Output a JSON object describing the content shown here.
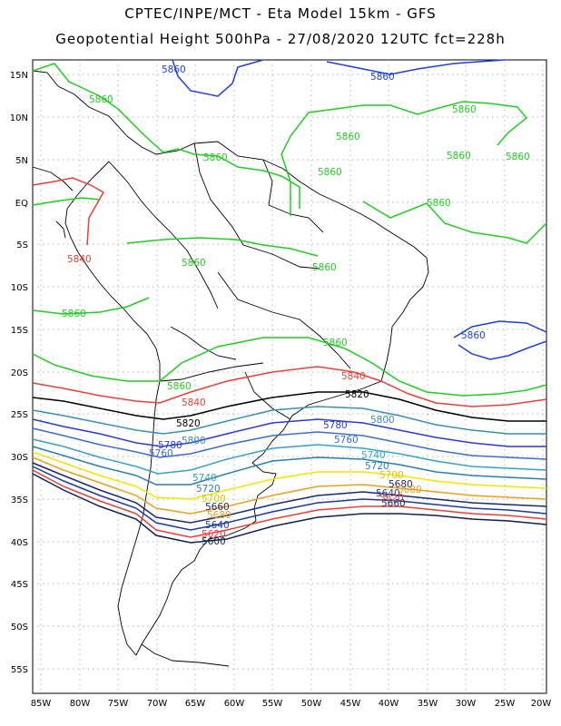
{
  "header": {
    "line1": "CPTEC/INPE/MCT -  Eta Model 15km - GFS",
    "line2": "Geopotential Height 500hPa - 27/08/2020 12UTC fct=228h"
  },
  "axes": {
    "lat_ticks": [
      "15N",
      "10N",
      "5N",
      "EQ",
      "5S",
      "10S",
      "15S",
      "20S",
      "25S",
      "30S",
      "35S",
      "40S",
      "45S",
      "50S",
      "55S"
    ],
    "lon_ticks": [
      "85W",
      "80W",
      "75W",
      "70W",
      "65W",
      "60W",
      "55W",
      "50W",
      "45W",
      "40W",
      "35W",
      "30W",
      "25W",
      "20W"
    ]
  },
  "contours": [
    {
      "level": "5860",
      "color": "#1f3fd6"
    },
    {
      "level": "5860",
      "color": "#22cc22"
    },
    {
      "level": "5840",
      "color": "#e8403a"
    },
    {
      "level": "5820",
      "color": "#000000"
    },
    {
      "level": "5800",
      "color": "#3a8fb0"
    },
    {
      "level": "5780",
      "color": "#2a3ad0"
    },
    {
      "level": "5760",
      "color": "#3a6ec8"
    },
    {
      "level": "5740",
      "color": "#3aa0c8"
    },
    {
      "level": "5720",
      "color": "#2a7fa8"
    },
    {
      "level": "5700",
      "color": "#f5e400"
    },
    {
      "level": "5680",
      "color": "#e8a020"
    },
    {
      "level": "5660",
      "color": "#1a2a6a"
    },
    {
      "level": "5640",
      "color": "#1a3aa0"
    },
    {
      "level": "5620",
      "color": "#e8403a"
    },
    {
      "level": "5600",
      "color": "#102050"
    }
  ],
  "labels": {
    "l5860a": "5860",
    "l5860b": "5860",
    "l5860c": "5860",
    "l5860d": "5860",
    "l5860e": "5860",
    "l5860f": "5860",
    "l5860g": "5860",
    "l5860h": "5860",
    "l5860i": "5860",
    "l5860j": "5860",
    "l5860k": "5860",
    "l5860l": "5860",
    "l5860m": "5860",
    "l5860n": "5860",
    "l5860o": "5860",
    "l5860p": "5860",
    "l5860q": "5860",
    "l5840a": "5840",
    "l5840b": "5840",
    "l5840c": "5840",
    "l5840d": "5840",
    "l5820a": "5820",
    "l5820b": "5820",
    "l5800a": "5800",
    "l5800b": "5800",
    "l5780a": "5780",
    "l5780b": "5780",
    "l5760a": "5760",
    "l5760b": "5760",
    "l5740a": "5740",
    "l5740b": "5740",
    "l5720a": "5720",
    "l5720b": "5720",
    "l5700a": "5700",
    "l5700b": "5700",
    "l5680a": "5680",
    "l5680b": "5680",
    "l5680c": "5680",
    "l5660a": "5660",
    "l5660b": "5660",
    "l5640a": "5640",
    "l5640b": "5640",
    "l5620a": "5620",
    "l5620b": "5620",
    "l5600a": "5600",
    "l5600b": "5600"
  }
}
